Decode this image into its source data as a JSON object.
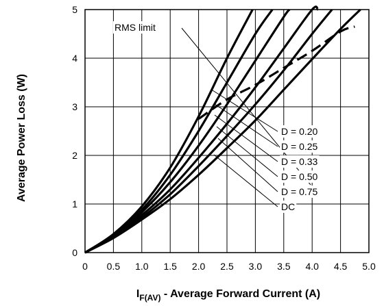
{
  "chart_data": {
    "type": "line",
    "title": "",
    "xlabel": {
      "main": "I",
      "sub": "F(AV)",
      "rest": " - Average Forward Current (A)"
    },
    "ylabel": "Average Power Loss (W)",
    "xlim": [
      0,
      5
    ],
    "ylim": [
      0,
      5
    ],
    "xticks": [
      "0",
      "0.5",
      "1.0",
      "1.5",
      "2.0",
      "2.5",
      "3.0",
      "3.5",
      "4.0",
      "4.5",
      "5.0"
    ],
    "yticks": [
      "0",
      "1",
      "2",
      "3",
      "4",
      "5"
    ],
    "grid": true,
    "series": [
      {
        "name": "D = 0.20",
        "style": "solid",
        "x": [
          0,
          0.5,
          1.0,
          1.5,
          2.0,
          2.5,
          2.95
        ],
        "y": [
          0,
          0.38,
          0.95,
          1.75,
          2.8,
          4.0,
          5.0
        ]
      },
      {
        "name": "D = 0.25",
        "style": "solid",
        "x": [
          0,
          0.5,
          1.0,
          1.5,
          2.0,
          2.5,
          3.0,
          3.3
        ],
        "y": [
          0,
          0.36,
          0.88,
          1.6,
          2.5,
          3.5,
          4.5,
          5.0
        ]
      },
      {
        "name": "D = 0.33",
        "style": "solid",
        "x": [
          0,
          0.5,
          1.0,
          1.5,
          2.0,
          2.5,
          3.0,
          3.5,
          3.6
        ],
        "y": [
          0,
          0.34,
          0.83,
          1.45,
          2.2,
          3.05,
          3.95,
          4.85,
          5.0
        ]
      },
      {
        "name": "D = 0.50",
        "style": "solid",
        "x": [
          0,
          0.5,
          1.0,
          1.5,
          2.0,
          2.5,
          3.0,
          3.5,
          4.0,
          4.1
        ],
        "y": [
          0,
          0.32,
          0.77,
          1.3,
          1.95,
          2.65,
          3.4,
          4.2,
          5.0,
          5.0
        ]
      },
      {
        "name": "D = 0.75",
        "style": "solid",
        "x": [
          0,
          0.5,
          1.0,
          1.5,
          2.0,
          2.5,
          3.0,
          3.5,
          4.0,
          4.35
        ],
        "y": [
          0,
          0.31,
          0.72,
          1.2,
          1.78,
          2.4,
          3.05,
          3.75,
          4.5,
          5.0
        ]
      },
      {
        "name": "DC",
        "style": "solid",
        "x": [
          0,
          0.5,
          1.0,
          1.5,
          2.0,
          2.5,
          3.0,
          3.5,
          4.0,
          4.5,
          4.85
        ],
        "y": [
          0,
          0.3,
          0.68,
          1.1,
          1.6,
          2.15,
          2.72,
          3.35,
          3.98,
          4.6,
          5.0
        ]
      },
      {
        "name": "RMS limit",
        "style": "dashed",
        "x": [
          2.0,
          2.5,
          3.0,
          3.5,
          4.0,
          4.5,
          4.75
        ],
        "y": [
          2.75,
          3.15,
          3.45,
          3.8,
          4.15,
          4.55,
          4.65
        ]
      }
    ],
    "annotations": [
      {
        "text": "RMS limit",
        "target_series": "RMS limit"
      },
      {
        "text": "D = 0.20",
        "target_series": "D = 0.20"
      },
      {
        "text": "D = 0.25",
        "target_series": "D = 0.25"
      },
      {
        "text": "D = 0.33",
        "target_series": "D = 0.33"
      },
      {
        "text": "D = 0.50",
        "target_series": "D = 0.50"
      },
      {
        "text": "D = 0.75",
        "target_series": "D = 0.75"
      },
      {
        "text": "DC",
        "target_series": "DC"
      }
    ]
  }
}
